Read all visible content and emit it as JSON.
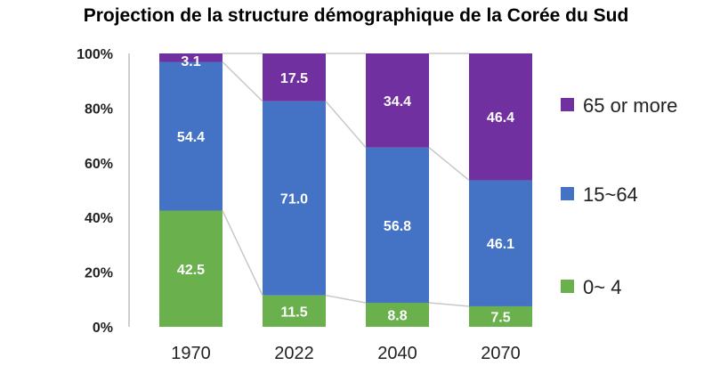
{
  "chart_data": {
    "type": "bar",
    "stacked": true,
    "title": "Projection de la structure démographique de la Corée du Sud",
    "categories": [
      "1970",
      "2022",
      "2040",
      "2070"
    ],
    "series": [
      {
        "name": "0~ 4",
        "color": "#6ab04c",
        "values": [
          42.5,
          11.5,
          8.8,
          7.5
        ],
        "labels": [
          "42.5",
          "11.5",
          "8.8",
          "7.5"
        ]
      },
      {
        "name": "15~64",
        "color": "#4472c4",
        "values": [
          54.4,
          71.0,
          56.8,
          46.1
        ],
        "labels": [
          "54.4",
          "71.0",
          "56.8",
          "46.1"
        ]
      },
      {
        "name": "65 or more",
        "color": "#7030a0",
        "values": [
          3.1,
          17.5,
          34.4,
          46.4
        ],
        "labels": [
          "3.1",
          "17.5",
          "34.4",
          "46.4"
        ]
      }
    ],
    "yticks": [
      "0%",
      "20%",
      "40%",
      "60%",
      "80%",
      "100%"
    ],
    "ylim": [
      0,
      100
    ],
    "legend_position": "right",
    "grid": false
  }
}
